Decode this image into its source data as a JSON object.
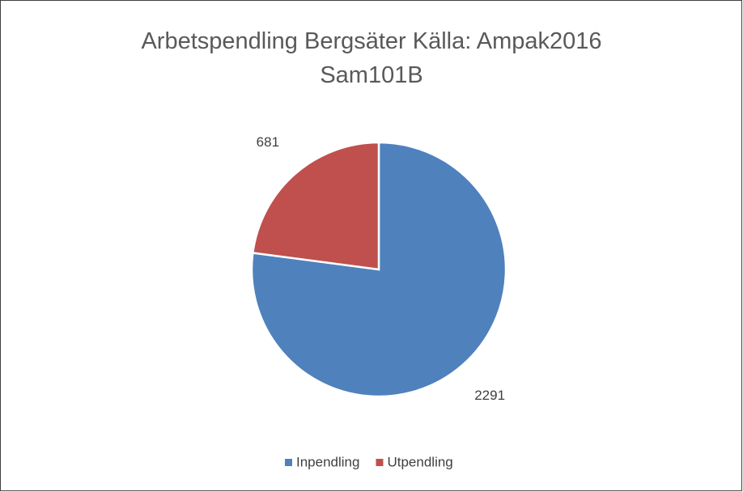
{
  "chart_data": {
    "type": "pie",
    "title": "Arbetspendling Bergsäter Källa: Ampak2016 Sam101B",
    "categories": [
      "Inpendling",
      "Utpendling"
    ],
    "values": [
      2291,
      681
    ],
    "colors": [
      "#4f81bd",
      "#c0504d"
    ],
    "legend": "bottom"
  }
}
